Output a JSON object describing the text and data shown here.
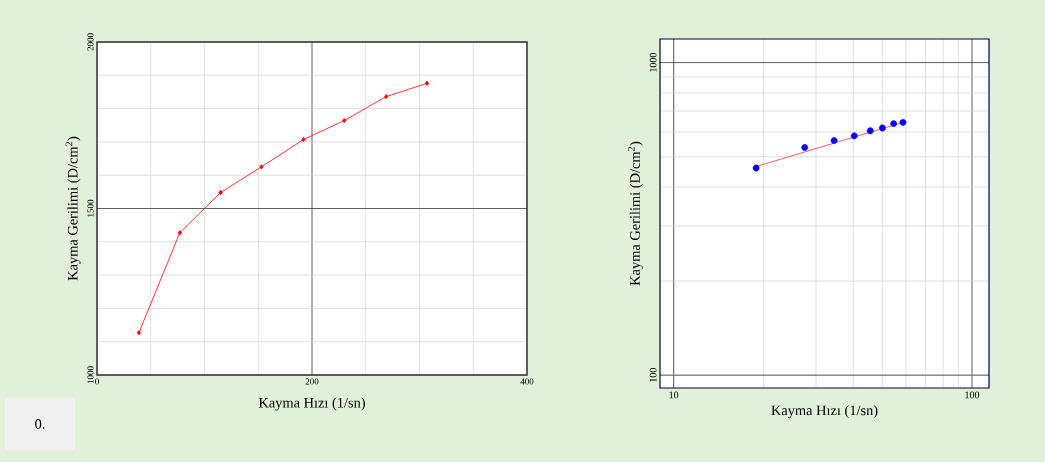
{
  "chart_data": [
    {
      "type": "line",
      "xlabel": "Kayma Hızı (1/sn)",
      "ylabel": "Kayma Gerilimi (D/cm$^{2}$)",
      "annotations": [
        "0."
      ],
      "xlim": [
        0,
        400
      ],
      "ylim": [
        1000,
        2000
      ],
      "xticks": [
        0,
        200,
        400
      ],
      "yticks": [
        1000,
        1500,
        2000
      ],
      "grid": true,
      "marker": "diamond",
      "line_style": "solid",
      "series": [
        {
          "color": "#ff0000",
          "x": [
            39,
            77,
            115,
            153,
            192,
            230,
            269,
            307
          ],
          "values": [
            1127,
            1427,
            1548,
            1625,
            1707,
            1764,
            1836,
            1876
          ]
        }
      ]
    },
    {
      "type": "scatter",
      "xlabel": "Kayma Hızı (1/sn)",
      "ylabel": "Kayma Gerilimi (D/cm$^{2}$)",
      "log": "xy",
      "xlim": [
        9,
        114
      ],
      "ylim": [
        91,
        1190
      ],
      "xticks": [
        10,
        100
      ],
      "yticks": [
        100,
        1000
      ],
      "grid": true,
      "marker": "circle",
      "series": [
        {
          "color": "#0000ff",
          "x": [
            18.9,
            27.5,
            34.5,
            40.3,
            45.6,
            50.1,
            54.6,
            58.7
          ],
          "values": [
            460,
            535,
            563,
            583,
            605,
            618,
            638,
            644
          ]
        },
        {
          "type": "line",
          "color": "#ff3333",
          "marker": "none",
          "x": [
            18.9,
            58.7
          ],
          "values": [
            465,
            644
          ]
        }
      ]
    }
  ]
}
